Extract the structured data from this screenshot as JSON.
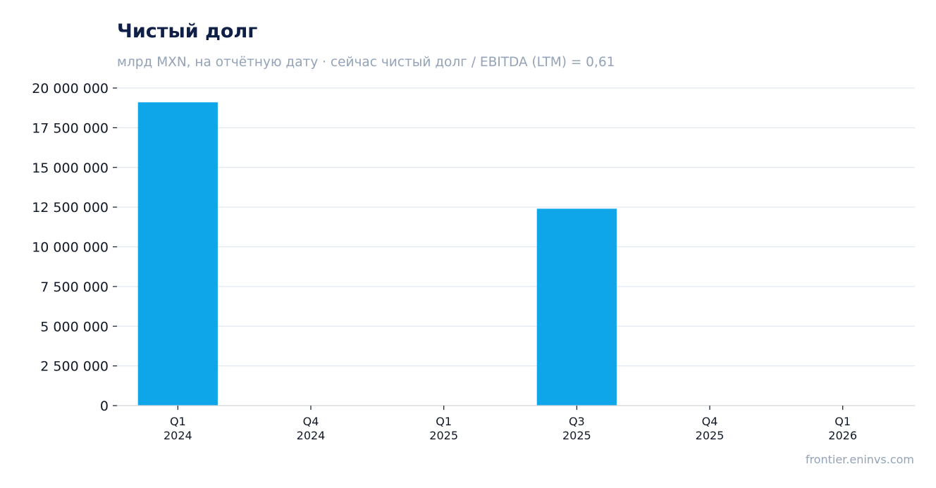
{
  "chart_data": {
    "type": "bar",
    "title": "Чистый долг",
    "subtitle": "млрд MXN, на отчётную дату · сейчас чистый долг / EBITDA (LTM) = 0,61",
    "categories": [
      [
        "Q1",
        "2024"
      ],
      [
        "Q4",
        "2024"
      ],
      [
        "Q1",
        "2025"
      ],
      [
        "Q3",
        "2025"
      ],
      [
        "Q4",
        "2025"
      ],
      [
        "Q1",
        "2026"
      ]
    ],
    "values": [
      19100000,
      0,
      0,
      12400000,
      0,
      0
    ],
    "ylim": [
      0,
      20000000
    ],
    "yticks": [
      0,
      2500000,
      5000000,
      7500000,
      10000000,
      12500000,
      15000000,
      17500000,
      20000000
    ],
    "ytick_labels": [
      "0",
      "2 500 000",
      "5 000 000",
      "7 500 000",
      "10 000 000",
      "12 500 000",
      "15 000 000",
      "17 500 000",
      "20 000 000"
    ],
    "xlabel": "",
    "ylabel": "",
    "grid": true,
    "bar_color": "#0ea5e9"
  },
  "source": "frontier.eninvs.com",
  "colors": {
    "title": "#0f1f45",
    "muted": "#94a3b8",
    "grid": "#e2e8f0"
  }
}
